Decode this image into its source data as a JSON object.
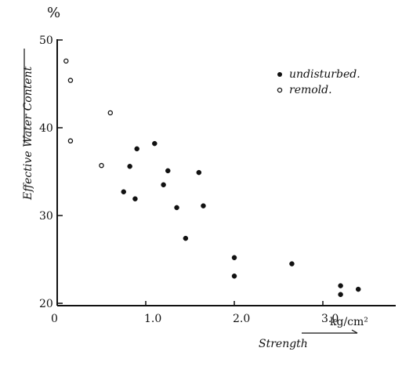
{
  "chart_data": {
    "type": "scatter",
    "xlabel": "Strength",
    "ylabel": "Effective Water Content",
    "y_unit": "%",
    "x_unit": "kg/cm²",
    "x_tick_labels": [
      "0",
      "1.0",
      "2.0",
      "3.0"
    ],
    "y_tick_labels": [
      "20",
      "30",
      "40",
      "50"
    ],
    "x_ticks": [
      0,
      1.0,
      2.0,
      3.0
    ],
    "y_ticks": [
      20,
      30,
      40,
      50
    ],
    "xlim": [
      0,
      3.6
    ],
    "ylim": [
      20,
      53
    ],
    "grid": false,
    "legend_position": "top-right",
    "series": [
      {
        "name": "undisturbed.",
        "marker": "filled-circle",
        "color": "#111111",
        "points": [
          {
            "x": 0.9,
            "y": 37.6
          },
          {
            "x": 1.1,
            "y": 38.2
          },
          {
            "x": 0.82,
            "y": 35.6
          },
          {
            "x": 1.25,
            "y": 35.1
          },
          {
            "x": 1.6,
            "y": 34.9
          },
          {
            "x": 0.75,
            "y": 32.7
          },
          {
            "x": 1.2,
            "y": 33.5
          },
          {
            "x": 0.88,
            "y": 31.9
          },
          {
            "x": 1.35,
            "y": 30.9
          },
          {
            "x": 1.65,
            "y": 31.1
          },
          {
            "x": 1.45,
            "y": 27.4
          },
          {
            "x": 2.0,
            "y": 25.2
          },
          {
            "x": 2.0,
            "y": 23.1
          },
          {
            "x": 2.65,
            "y": 24.5
          },
          {
            "x": 3.2,
            "y": 22.0
          },
          {
            "x": 3.2,
            "y": 21.0
          },
          {
            "x": 3.4,
            "y": 21.6
          }
        ]
      },
      {
        "name": "remold.",
        "marker": "open-circle",
        "color": "#111111",
        "points": [
          {
            "x": 0.1,
            "y": 47.6
          },
          {
            "x": 0.15,
            "y": 45.4
          },
          {
            "x": 0.15,
            "y": 38.5
          },
          {
            "x": 0.5,
            "y": 35.7
          },
          {
            "x": 0.6,
            "y": 41.7
          }
        ]
      }
    ]
  }
}
